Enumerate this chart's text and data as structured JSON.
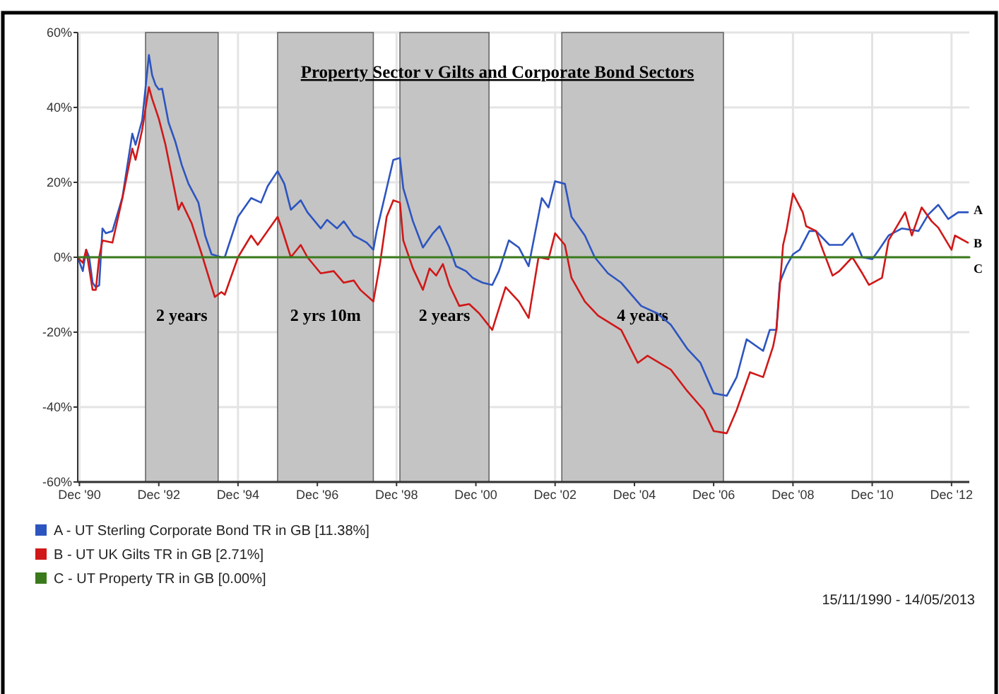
{
  "chart_data": {
    "type": "line",
    "title": "Property Sector v Gilts and Corporate Bond Sectors",
    "xlim": [
      "1990-11-15",
      "2013-05-14"
    ],
    "xticks": [
      {
        "value": "1990-12-01",
        "label": "Dec '90"
      },
      {
        "value": "1992-12-01",
        "label": "Dec '92"
      },
      {
        "value": "1994-12-01",
        "label": "Dec '94"
      },
      {
        "value": "1996-12-01",
        "label": "Dec '96"
      },
      {
        "value": "1998-12-01",
        "label": "Dec '98"
      },
      {
        "value": "2000-12-01",
        "label": "Dec '00"
      },
      {
        "value": "2002-12-01",
        "label": "Dec '02"
      },
      {
        "value": "2004-12-01",
        "label": "Dec '04"
      },
      {
        "value": "2006-12-01",
        "label": "Dec '06"
      },
      {
        "value": "2008-12-01",
        "label": "Dec '08"
      },
      {
        "value": "2010-12-01",
        "label": "Dec '10"
      },
      {
        "value": "2012-12-01",
        "label": "Dec '12"
      }
    ],
    "ylim": [
      -60,
      60
    ],
    "yticks": [
      {
        "value": -60,
        "label": "-60%"
      },
      {
        "value": -40,
        "label": "-40%"
      },
      {
        "value": -20,
        "label": "-20%"
      },
      {
        "value": 0,
        "label": "0%"
      },
      {
        "value": 20,
        "label": "20%"
      },
      {
        "value": 40,
        "label": "40%"
      },
      {
        "value": 60,
        "label": "60%"
      }
    ],
    "grid": true,
    "legend": "bottom",
    "series": [
      {
        "name": "A - UT Sterling Corporate Bond TR in GB [11.38%]",
        "color": "#2d55c0",
        "x": [
          "1990-11-15",
          "1991-01",
          "1991-02",
          "1991-03",
          "1991-04",
          "1991-05",
          "1991-06",
          "1991-07",
          "1991-08",
          "1991-10",
          "1992-01",
          "1992-04",
          "1992-05",
          "1992-07",
          "1992-09",
          "1992-10",
          "1992-11",
          "1992-12",
          "1993-01",
          "1993-03",
          "1993-05",
          "1993-07",
          "1993-09",
          "1993-12",
          "1994-02",
          "1994-04",
          "1994-07",
          "1994-08",
          "1994-12",
          "1995-04",
          "1995-07",
          "1995-09",
          "1995-12",
          "1996-02",
          "1996-04",
          "1996-07",
          "1996-09",
          "1997-01",
          "1997-03",
          "1997-06",
          "1997-08",
          "1997-11",
          "1998-03",
          "1998-05",
          "1998-06",
          "1998-09",
          "1998-11",
          "1999-01",
          "1999-02",
          "1999-05",
          "1999-08",
          "1999-11",
          "2000-01",
          "2000-04",
          "2000-06",
          "2000-09",
          "2000-11",
          "2001-02",
          "2001-05",
          "2001-07",
          "2001-10",
          "2002-01",
          "2002-04",
          "2002-08",
          "2002-10",
          "2002-12",
          "2003-03",
          "2003-05",
          "2003-09",
          "2003-12",
          "2004-04",
          "2004-08",
          "2005-02",
          "2005-07",
          "2005-11",
          "2006-04",
          "2006-08",
          "2006-12",
          "2007-04",
          "2007-07",
          "2007-10",
          "2008-03",
          "2008-05",
          "2008-07",
          "2008-08",
          "2008-10",
          "2008-12",
          "2009-02",
          "2009-05",
          "2009-07",
          "2009-11",
          "2010-03",
          "2010-06",
          "2010-09",
          "2010-12",
          "2011-02",
          "2011-05",
          "2011-09",
          "2012-02",
          "2012-05",
          "2012-08",
          "2012-11",
          "2013-02",
          "2013-05"
        ],
        "values": [
          0,
          -3.7,
          2,
          0,
          -6.8,
          -8,
          -7.5,
          7.7,
          6.4,
          7,
          16,
          33,
          30,
          36.6,
          54,
          48.6,
          46,
          44.8,
          45,
          36,
          31,
          24.6,
          19.6,
          14.6,
          5.8,
          0.8,
          0,
          0,
          10.8,
          15.8,
          14.6,
          19,
          23,
          19.6,
          12.7,
          15.2,
          12,
          7.7,
          10,
          7.7,
          9.6,
          5.8,
          3.9,
          2,
          7,
          18.4,
          26,
          26.5,
          18.4,
          9.6,
          2.6,
          6.4,
          8.3,
          2.6,
          -2.4,
          -3.7,
          -5.5,
          -6.8,
          -7.4,
          -3.7,
          4.5,
          2.6,
          -2.4,
          15.8,
          13.3,
          20.3,
          19.6,
          10.8,
          5.8,
          0,
          -4.3,
          -6.8,
          -13,
          -15,
          -18,
          -24.4,
          -28.2,
          -36.3,
          -37,
          -32,
          -21.9,
          -25,
          -19.4,
          -19.4,
          -6.8,
          -2.4,
          0.8,
          2,
          7,
          7,
          3.3,
          3.3,
          6.4,
          0,
          -0.5,
          2,
          5.8,
          7.7,
          7,
          11.4,
          14,
          10.2,
          12,
          12
        ]
      },
      {
        "name": "B - UT UK Gilts TR in GB [2.71%]",
        "color": "#d01818",
        "x": [
          "1990-11-15",
          "1991-01",
          "1991-02",
          "1991-04",
          "1991-05",
          "1991-06",
          "1991-07",
          "1991-10",
          "1992-01",
          "1992-04",
          "1992-05",
          "1992-07",
          "1992-09",
          "1992-10",
          "1992-12",
          "1993-02",
          "1993-06",
          "1993-07",
          "1993-10",
          "1994-01",
          "1994-05",
          "1994-07",
          "1994-08",
          "1994-12",
          "1995-04",
          "1995-06",
          "1995-12",
          "1996-01",
          "1996-04",
          "1996-07",
          "1996-09",
          "1997-01",
          "1997-05",
          "1997-08",
          "1997-11",
          "1998-01",
          "1998-05",
          "1998-07",
          "1998-09",
          "1998-11",
          "1999-01",
          "1999-02",
          "1999-05",
          "1999-08",
          "1999-10",
          "1999-12",
          "2000-02",
          "2000-04",
          "2000-07",
          "2000-10",
          "2001-01",
          "2001-05",
          "2001-09",
          "2002-01",
          "2002-04",
          "2002-07",
          "2002-10",
          "2002-12",
          "2003-03",
          "2003-05",
          "2003-09",
          "2004-01",
          "2004-08",
          "2005-01",
          "2005-04",
          "2005-11",
          "2006-04",
          "2006-09",
          "2006-12",
          "2007-04",
          "2007-07",
          "2007-11",
          "2008-03",
          "2008-06",
          "2008-07",
          "2008-09",
          "2008-10",
          "2008-12",
          "2009-03",
          "2009-04",
          "2009-07",
          "2009-09",
          "2009-12",
          "2010-02",
          "2010-06",
          "2010-09",
          "2010-11",
          "2011-03",
          "2011-05",
          "2011-10",
          "2011-12",
          "2012-03",
          "2012-06",
          "2012-08",
          "2012-12",
          "2013-01",
          "2013-05"
        ],
        "values": [
          0,
          -1.5,
          2,
          -8.7,
          -8.7,
          0,
          4.5,
          3.9,
          15.8,
          29,
          26,
          34,
          45.4,
          42.3,
          37,
          30,
          12.7,
          14.6,
          9,
          0.8,
          -10.6,
          -9.3,
          -10,
          0,
          5.8,
          3.3,
          10.8,
          8.3,
          0,
          3.3,
          0,
          -4.3,
          -3.7,
          -6.8,
          -6.2,
          -8.7,
          -11.8,
          -1.8,
          10.8,
          15.2,
          14.6,
          4.5,
          -3,
          -8.7,
          -3,
          -4.9,
          -1.8,
          -7.4,
          -13,
          -12.5,
          -15,
          -19.4,
          -8,
          -11.8,
          -16.2,
          0,
          -0.5,
          6.4,
          3.3,
          -5.5,
          -11.8,
          -15.6,
          -19.4,
          -28.2,
          -26.3,
          -30,
          -35.7,
          -40.8,
          -46.4,
          -47,
          -40.8,
          -30.7,
          -32,
          -23.8,
          -19.4,
          3.3,
          7,
          17,
          12,
          8.3,
          7,
          2,
          -4.9,
          -3.7,
          0,
          -4.3,
          -7.4,
          -5.5,
          4.5,
          12,
          5.8,
          13.3,
          9.6,
          7.9,
          2,
          5.8,
          3.9
        ]
      },
      {
        "name": "C - UT Property TR in GB [0.00%]",
        "color": "#3a7a1c",
        "x": [
          "1990-11-15",
          "2013-05-14"
        ],
        "values": [
          0,
          0
        ]
      }
    ],
    "bands": [
      {
        "axis": "x",
        "from": "1992-08",
        "to": "1994-06",
        "label": "2 years",
        "color": "#c4c4c4"
      },
      {
        "axis": "x",
        "from": "1995-12",
        "to": "1998-05",
        "label": "2 yrs 10m",
        "color": "#c4c4c4"
      },
      {
        "axis": "x",
        "from": "1999-01",
        "to": "2001-04",
        "label": "2 years",
        "color": "#c4c4c4"
      },
      {
        "axis": "x",
        "from": "2003-02",
        "to": "2007-03",
        "label": "4 years",
        "color": "#c4c4c4"
      }
    ],
    "annotations": [
      {
        "text": "A",
        "x": "2013-05-14",
        "y": 12
      },
      {
        "text": "B",
        "x": "2013-05-14",
        "y": 3.9
      },
      {
        "text": "C",
        "x": "2013-05-14",
        "y": 0
      },
      "15/11/1990 - 14/05/2013"
    ]
  }
}
